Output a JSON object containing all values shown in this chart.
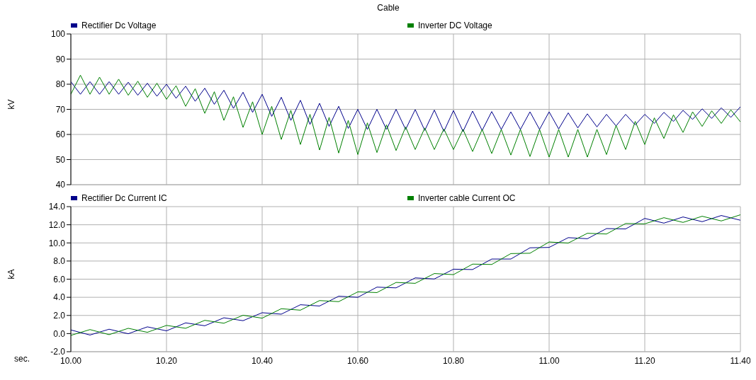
{
  "chart_data": [
    {
      "type": "line",
      "title": "Cable",
      "ylabel": "kV",
      "legend": "top",
      "grid": true,
      "marker": "none",
      "line_style": "solid",
      "tick_labels": "y",
      "xlim": [
        10,
        11.4
      ],
      "xticks": [
        {
          "value": 10,
          "label": null
        },
        {
          "value": 10.2,
          "label": null
        },
        {
          "value": 10.4,
          "label": null
        },
        {
          "value": 10.6,
          "label": null
        },
        {
          "value": 10.8,
          "label": null
        },
        {
          "value": 11,
          "label": null
        },
        {
          "value": 11.2,
          "label": null
        },
        {
          "value": 11.4,
          "label": null
        }
      ],
      "ylim": [
        40,
        100
      ],
      "yticks": [
        40,
        50,
        60,
        70,
        80,
        90,
        100
      ],
      "x": [
        10,
        10.02,
        10.04,
        10.06,
        10.08,
        10.1,
        10.12,
        10.14,
        10.16,
        10.18,
        10.2,
        10.22,
        10.24,
        10.26,
        10.28,
        10.3,
        10.32,
        10.34,
        10.36,
        10.38,
        10.4,
        10.42,
        10.44,
        10.46,
        10.48,
        10.5,
        10.52,
        10.54,
        10.56,
        10.58,
        10.6,
        10.62,
        10.64,
        10.66,
        10.68,
        10.7,
        10.72,
        10.74,
        10.76,
        10.78,
        10.8,
        10.82,
        10.84,
        10.86,
        10.88,
        10.9,
        10.92,
        10.94,
        10.96,
        10.98,
        11,
        11.02,
        11.04,
        11.06,
        11.08,
        11.1,
        11.12,
        11.14,
        11.16,
        11.18,
        11.2,
        11.22,
        11.24,
        11.26,
        11.28,
        11.3,
        11.32,
        11.34,
        11.36,
        11.38,
        11.4
      ],
      "series": [
        {
          "name": "Rectifier Dc Voltage",
          "color": "#00008b",
          "values": [
            81,
            76,
            81,
            76,
            81,
            76,
            80.8,
            75.6,
            80.4,
            75.2,
            80,
            74.4,
            79.2,
            73.2,
            78.4,
            72,
            77.6,
            70.4,
            76.8,
            68.8,
            76,
            67.2,
            74.8,
            65.6,
            73.6,
            64,
            72.4,
            63.2,
            71.2,
            62.4,
            70,
            62,
            70,
            62,
            70,
            62,
            69.9,
            61.6,
            69.7,
            61.2,
            69.5,
            61.2,
            69.3,
            61.6,
            69.1,
            62,
            69,
            62,
            69,
            62,
            69,
            62.2,
            68.6,
            62.6,
            68.2,
            63,
            68,
            63.4,
            68,
            63.8,
            68,
            64.4,
            68.8,
            65.2,
            69.6,
            66,
            70.2,
            66.4,
            70.6,
            66.8,
            71
          ]
        },
        {
          "name": "Inverter DC Voltage",
          "color": "#008000",
          "values": [
            76,
            83.6,
            76,
            82.8,
            76,
            82,
            75.6,
            81.2,
            74.8,
            80.4,
            74,
            79.4,
            71.2,
            78.2,
            68.4,
            77,
            65.6,
            75,
            62.8,
            73,
            60,
            71.2,
            58,
            69.6,
            56,
            68,
            53.8,
            66.8,
            52.6,
            65.6,
            52,
            64.6,
            52.8,
            63.8,
            53.6,
            63,
            54,
            62.6,
            54,
            62.2,
            54,
            62,
            53.2,
            62,
            52.4,
            62,
            51.8,
            62,
            51.2,
            62,
            51,
            62,
            51,
            62,
            51,
            62,
            52,
            63.6,
            54,
            65.2,
            56,
            66.6,
            58.4,
            67.8,
            60.8,
            69,
            63.2,
            69.4,
            64.4,
            69.8,
            65
          ]
        }
      ]
    },
    {
      "type": "line",
      "ylabel": "kA",
      "xlabel": "sec.",
      "legend": "top",
      "grid": true,
      "marker": "none",
      "line_style": "solid",
      "xlim": [
        10,
        11.4
      ],
      "xticks": [
        {
          "value": 10,
          "label": "10.00"
        },
        {
          "value": 10.2,
          "label": "10.20"
        },
        {
          "value": 10.4,
          "label": "10.40"
        },
        {
          "value": 10.6,
          "label": "10.60"
        },
        {
          "value": 10.8,
          "label": "10.80"
        },
        {
          "value": 11,
          "label": "11.00"
        },
        {
          "value": 11.2,
          "label": "11.20"
        },
        {
          "value": 11.4,
          "label": "11.40"
        }
      ],
      "ylim": [
        -2,
        14
      ],
      "yticks": [
        {
          "value": -2,
          "label": "-2.0"
        },
        {
          "value": 0,
          "label": "0.0"
        },
        {
          "value": 2,
          "label": "2.0"
        },
        {
          "value": 4,
          "label": "4.0"
        },
        {
          "value": 6,
          "label": "6.0"
        },
        {
          "value": 8,
          "label": "8.0"
        },
        {
          "value": 10,
          "label": "10.0"
        },
        {
          "value": 12,
          "label": "12.0"
        },
        {
          "value": 14,
          "label": "14.0"
        }
      ],
      "x": [
        10,
        10.04,
        10.08,
        10.12,
        10.16,
        10.2,
        10.24,
        10.28,
        10.32,
        10.36,
        10.4,
        10.44,
        10.48,
        10.52,
        10.56,
        10.6,
        10.64,
        10.68,
        10.72,
        10.76,
        10.8,
        10.84,
        10.88,
        10.92,
        10.96,
        11,
        11.04,
        11.08,
        11.12,
        11.16,
        11.2,
        11.24,
        11.28,
        11.32,
        11.36,
        11.4
      ],
      "series": [
        {
          "name": "Rectifier Dc Current IC",
          "color": "#00008b",
          "values": [
            0.4,
            -0.16,
            0.48,
            -0.02,
            0.74,
            0.3,
            1.18,
            0.86,
            1.74,
            1.42,
            2.3,
            2.14,
            3.18,
            3.04,
            4.12,
            4,
            5.12,
            5.04,
            6.14,
            6.02,
            7.1,
            7.06,
            8.22,
            8.22,
            9.46,
            9.5,
            10.58,
            10.46,
            11.58,
            11.54,
            12.7,
            12.18,
            12.86,
            12.34,
            13.02,
            12.5
          ]
        },
        {
          "name": "Inverter cable Current OC",
          "color": "#008000",
          "values": [
            -0.2,
            0.44,
            -0.12,
            0.58,
            0.14,
            0.9,
            0.58,
            1.46,
            1.14,
            2.02,
            1.7,
            2.74,
            2.58,
            3.64,
            3.52,
            4.6,
            4.52,
            5.64,
            5.54,
            6.62,
            6.5,
            7.66,
            7.62,
            8.82,
            8.86,
            10.1,
            9.98,
            11.06,
            10.98,
            12.14,
            12.1,
            12.78,
            12.26,
            12.94,
            12.42,
            13.1
          ]
        }
      ]
    }
  ]
}
